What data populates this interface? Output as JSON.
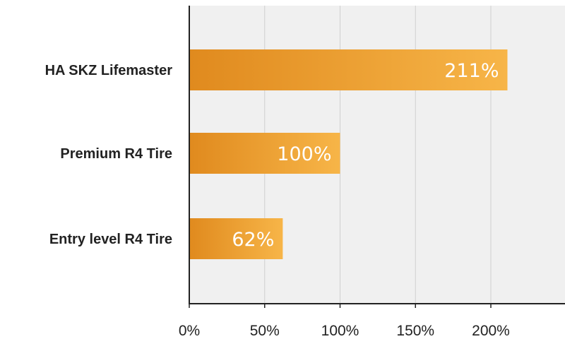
{
  "chart_data": {
    "type": "bar",
    "orientation": "horizontal",
    "categories": [
      "HA SKZ Lifemaster",
      "Premium R4 Tire",
      "Entry level R4 Tire"
    ],
    "values": [
      211,
      100,
      62
    ],
    "data_labels": [
      "211%",
      "100%",
      "62%"
    ],
    "x_ticks": [
      0,
      50,
      100,
      150,
      200
    ],
    "x_tick_labels": [
      "0%",
      "50%",
      "100%",
      "150%",
      "200%"
    ],
    "xlim": [
      0,
      250
    ],
    "grid": true,
    "bar_color_start": "#e08a1e",
    "bar_color_end": "#f7b548",
    "background_color": "#f0f0f0",
    "grid_color": "#cfcfcf",
    "axis_color": "#222222"
  }
}
